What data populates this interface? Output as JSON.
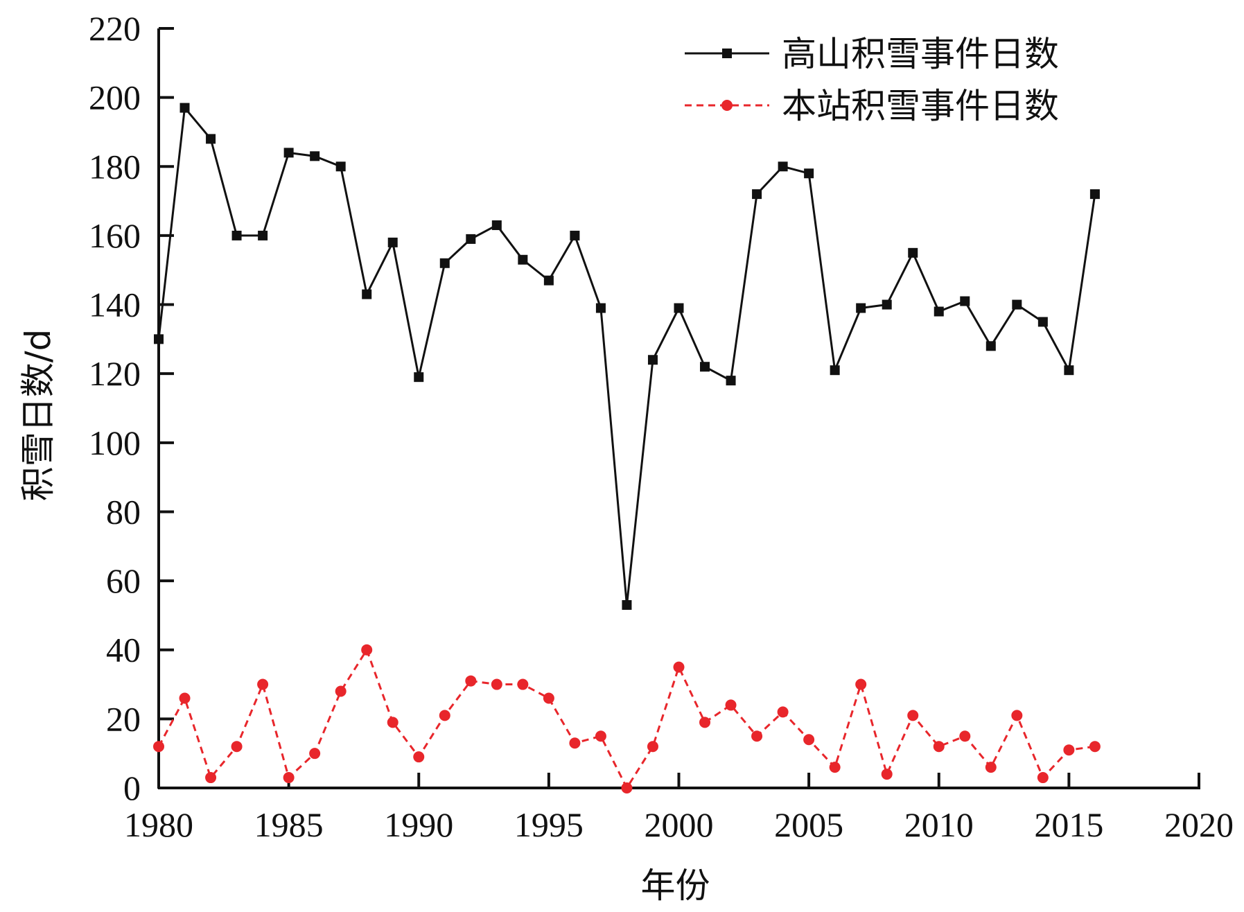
{
  "chart_data": {
    "type": "line",
    "xlabel": "年份",
    "ylabel": "积雪日数/d",
    "xlim": [
      1980,
      2020
    ],
    "ylim": [
      0,
      220
    ],
    "xticks": [
      "1980",
      "1985",
      "1990",
      "1995",
      "2000",
      "2005",
      "2010",
      "2015",
      "2020"
    ],
    "yticks": [
      "0",
      "20",
      "40",
      "60",
      "80",
      "100",
      "120",
      "140",
      "160",
      "180",
      "200",
      "220"
    ],
    "legend_position": "top-right",
    "grid": false,
    "x": [
      1980,
      1981,
      1982,
      1983,
      1984,
      1985,
      1986,
      1987,
      1988,
      1989,
      1990,
      1991,
      1992,
      1993,
      1994,
      1995,
      1996,
      1997,
      1998,
      1999,
      2000,
      2001,
      2002,
      2003,
      2004,
      2005,
      2006,
      2007,
      2008,
      2009,
      2010,
      2011,
      2012,
      2013,
      2014,
      2015,
      2016
    ],
    "series": [
      {
        "name": "高山积雪事件日数",
        "color": "#111111",
        "marker": "square",
        "line_style": "solid",
        "values": [
          130,
          197,
          188,
          160,
          160,
          184,
          183,
          180,
          143,
          158,
          119,
          152,
          159,
          163,
          153,
          147,
          160,
          139,
          53,
          124,
          139,
          122,
          118,
          172,
          180,
          178,
          121,
          139,
          140,
          155,
          138,
          141,
          128,
          140,
          135,
          121,
          172
        ]
      },
      {
        "name": "本站积雪事件日数",
        "color": "#e8262b",
        "marker": "circle",
        "line_style": "dashed",
        "values": [
          12,
          26,
          3,
          12,
          30,
          3,
          10,
          28,
          40,
          19,
          9,
          21,
          31,
          30,
          30,
          26,
          13,
          15,
          0,
          12,
          35,
          19,
          24,
          15,
          22,
          14,
          6,
          30,
          4,
          21,
          12,
          15,
          6,
          21,
          3,
          11,
          12
        ]
      }
    ]
  }
}
